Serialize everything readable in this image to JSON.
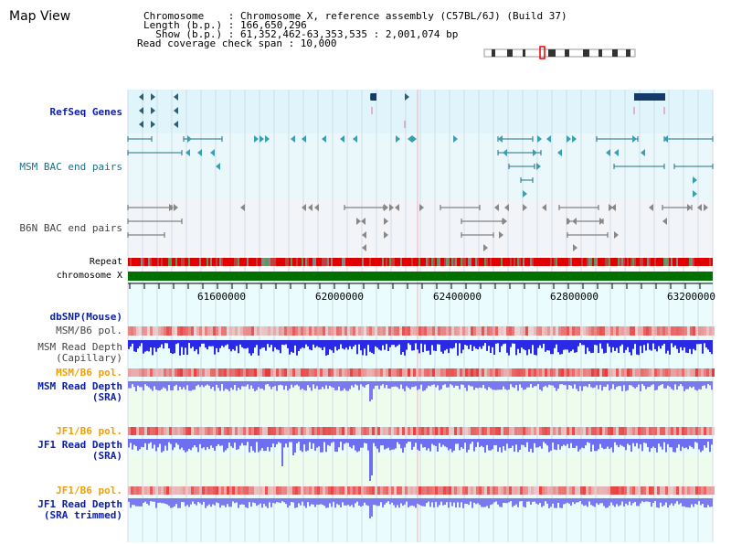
{
  "header": {
    "map_view": "Map View",
    "line1": "Chromosome    : Chromosome X, reference assembly (C57BL/6J) (Build 37)",
    "line2": "Length (b.p.) : 166,650,296",
    "line3": "  Show (b.p.) : 61,352,462-63,353,535 : 2,001,074 bp",
    "line4": "Read coverage check span : 10,000"
  },
  "tracks": {
    "refseq": "RefSeq Genes",
    "msm_bac": "MSM BAC end pairs",
    "b6n_bac": "B6N BAC end pairs",
    "repeat": "Repeat",
    "chromosome": "chromosome X",
    "dbsnp": "dbSNP(Mouse)",
    "msm_b6_pol_1": "MSM/B6 pol.",
    "msm_read_depth_cap": "MSM Read Depth\n(Capillary)",
    "msm_b6_pol_2": "MSM/B6 pol.",
    "msm_read_depth_sra": "MSM Read Depth\n(SRA)",
    "jf1_b6_pol_1": "JF1/B6 pol.",
    "jf1_read_depth_sra": "JF1 Read Depth\n(SRA)",
    "jf1_b6_pol_2": "JF1/B6 pol.",
    "jf1_read_depth_trim": "JF1 Read Depth\n(SRA trimmed)"
  },
  "axis_ticks": [
    "61600000",
    "62000000",
    "62400000",
    "62800000",
    "63200000"
  ],
  "colors": {
    "refseq_bg": "#dff4fb",
    "bac_bg": "#eaf8fb",
    "b6n_bg": "#f2f4f8",
    "depth_bg": "#eefcee",
    "chromosome": "#007000",
    "depth_blue": "#2a2ae6",
    "pol_red": "#e83a3a"
  }
}
